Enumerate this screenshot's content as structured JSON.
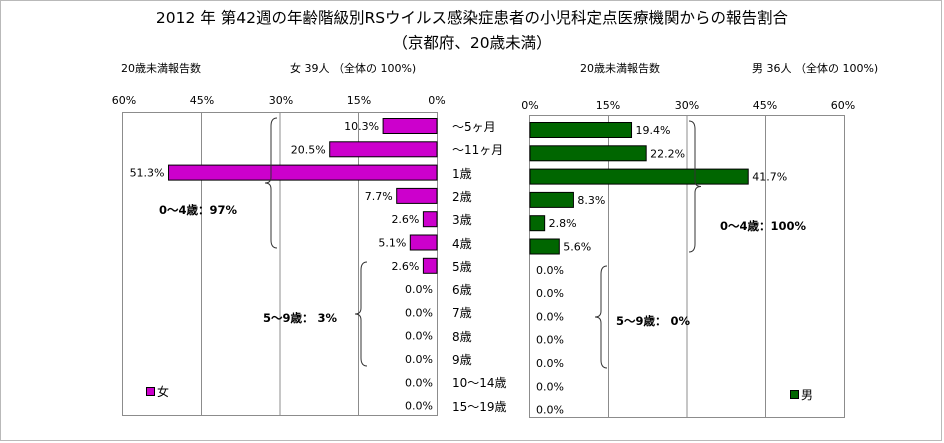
{
  "title": {
    "line1": "2012 年 第42週の年齢階級別RSウイルス感染症患者の小児科定点医療機関からの報告割合",
    "line2": "（京都府、20歳未満）"
  },
  "colors": {
    "female": "#cc00cc",
    "male": "#006600",
    "grid": "#8c8c8c"
  },
  "left_panel": {
    "header_left": "20歳未満報告数",
    "header_right": "女  39人  （全体の   100%)",
    "ticks": [
      "60%",
      "45%",
      "30%",
      "15%",
      "0%"
    ],
    "legend": "女",
    "group_notes": [
      "0～4歳：97%",
      "5～9歳：  3%"
    ]
  },
  "right_panel": {
    "header_left": "20歳未満報告数",
    "header_right": "男   36人 （全体の    100%)",
    "ticks": [
      "0%",
      "15%",
      "30%",
      "45%",
      "60%"
    ],
    "legend": "男",
    "group_notes": [
      "0～4歳：100%",
      "5～9歳：  0%"
    ]
  },
  "age_labels": [
    "～5ヶ月",
    "～11ヶ月",
    "1歳",
    "2歳",
    "3歳",
    "4歳",
    "5歳",
    "6歳",
    "7歳",
    "8歳",
    "9歳",
    "10～14歳",
    "15～19歳"
  ],
  "chart_data": [
    {
      "type": "bar",
      "orientation": "horizontal",
      "title": "",
      "categories": [
        "～5ヶ月",
        "～11ヶ月",
        "1歳",
        "2歳",
        "3歳",
        "4歳",
        "5歳",
        "6歳",
        "7歳",
        "8歳",
        "9歳",
        "10～14歳",
        "15～19歳"
      ],
      "series": [
        {
          "name": "女",
          "values": [
            10.3,
            20.5,
            51.3,
            7.7,
            2.6,
            5.1,
            2.6,
            0.0,
            0.0,
            0.0,
            0.0,
            0.0,
            0.0
          ],
          "labels": [
            "10.3%",
            "20.5%",
            "51.3%",
            "7.7%",
            "2.6%",
            "5.1%",
            "2.6%",
            "0.0%",
            "0.0%",
            "0.0%",
            "0.0%",
            "0.0%",
            "0.0%"
          ]
        }
      ],
      "xlim": [
        0,
        60
      ],
      "x_reversed": true,
      "unit": "%",
      "grid": true,
      "legend": "bottom-left"
    },
    {
      "type": "bar",
      "orientation": "horizontal",
      "title": "",
      "categories": [
        "～5ヶ月",
        "～11ヶ月",
        "1歳",
        "2歳",
        "3歳",
        "4歳",
        "5歳",
        "6歳",
        "7歳",
        "8歳",
        "9歳",
        "10～14歳",
        "15～19歳"
      ],
      "series": [
        {
          "name": "男",
          "values": [
            19.4,
            22.2,
            41.7,
            8.3,
            2.8,
            5.6,
            0.0,
            0.0,
            0.0,
            0.0,
            0.0,
            0.0,
            0.0
          ],
          "labels": [
            "19.4%",
            "22.2%",
            "41.7%",
            "8.3%",
            "2.8%",
            "5.6%",
            "0.0%",
            "0.0%",
            "0.0%",
            "0.0%",
            "0.0%",
            "0.0%",
            "0.0%"
          ]
        }
      ],
      "xlim": [
        0,
        60
      ],
      "x_reversed": false,
      "unit": "%",
      "grid": true,
      "legend": "bottom-right"
    }
  ]
}
